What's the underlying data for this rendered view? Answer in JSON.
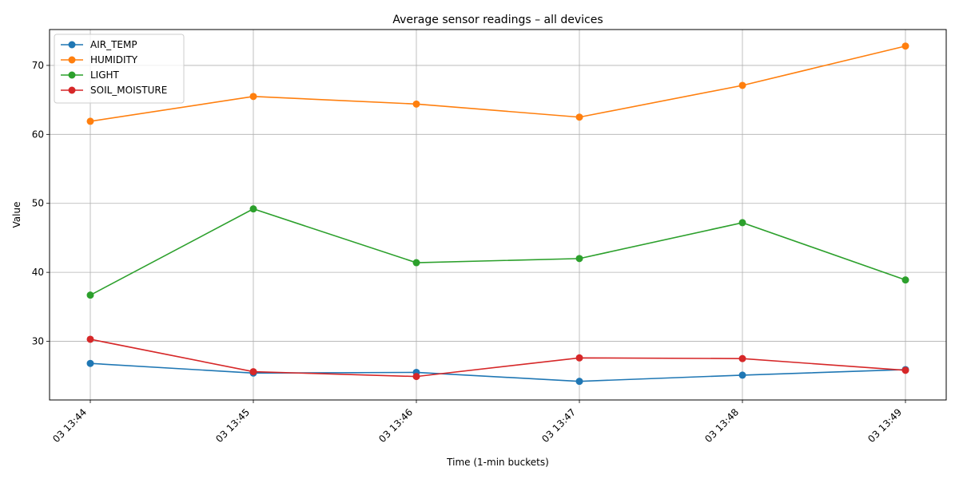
{
  "chart_data": {
    "type": "line",
    "title": "Average sensor readings – all devices",
    "xlabel": "Time (1-min buckets)",
    "ylabel": "Value",
    "categories": [
      "03 13:44",
      "03 13:45",
      "03 13:46",
      "03 13:47",
      "03 13:48",
      "03 13:49"
    ],
    "ylim": [
      21.5,
      75.2
    ],
    "yticks": [
      30,
      40,
      50,
      60,
      70
    ],
    "grid": true,
    "legend_position": "top-left",
    "series": [
      {
        "name": "AIR_TEMP",
        "color": "#1f77b4",
        "values": [
          26.8,
          25.4,
          25.5,
          24.2,
          25.1,
          25.9
        ]
      },
      {
        "name": "HUMIDITY",
        "color": "#ff7f0e",
        "values": [
          61.9,
          65.5,
          64.4,
          62.5,
          67.1,
          72.8
        ]
      },
      {
        "name": "LIGHT",
        "color": "#2ca02c",
        "values": [
          36.7,
          49.2,
          41.4,
          42.0,
          47.2,
          38.9
        ]
      },
      {
        "name": "SOIL_MOISTURE",
        "color": "#d62728",
        "values": [
          30.3,
          25.6,
          24.9,
          27.6,
          27.5,
          25.8
        ]
      }
    ]
  }
}
